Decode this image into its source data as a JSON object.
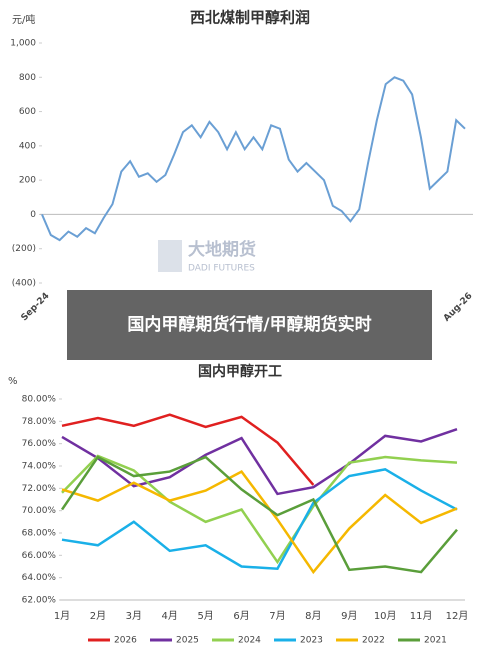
{
  "overlay_caption": "国内甲醇期货行情/甲醇期货实时",
  "chart_data": [
    {
      "type": "line",
      "title": "西北煤制甲醇利润",
      "y_label": "元/吨",
      "watermark": {
        "name": "大地期货",
        "sub": "DADI FUTURES"
      },
      "categories": [
        "Sep-24",
        null,
        null,
        null,
        null,
        null,
        null,
        null,
        null,
        null,
        null,
        null,
        null,
        null,
        null,
        null,
        null,
        null,
        null,
        null,
        null,
        null,
        null,
        null,
        null,
        null,
        null,
        null,
        null,
        null,
        null,
        null,
        null,
        null,
        null,
        null,
        null,
        null,
        null,
        null,
        null,
        null,
        null,
        null,
        null,
        null,
        null,
        null,
        "Aug-26"
      ],
      "series": [
        {
          "name": null,
          "color": "#6a9fd4",
          "values": [
            0,
            -120,
            -150,
            -100,
            -130,
            -80,
            -110,
            -20,
            60,
            250,
            310,
            220,
            240,
            190,
            230,
            350,
            480,
            520,
            450,
            540,
            480,
            380,
            480,
            380,
            450,
            380,
            520,
            500,
            320,
            250,
            300,
            250,
            200,
            50,
            20,
            -40,
            30,
            300,
            550,
            760,
            800,
            780,
            700,
            450,
            150,
            200,
            250,
            550,
            500
          ]
        }
      ],
      "ylim": [
        -400,
        1000
      ],
      "yticks": [
        {
          "value": -400,
          "label": "(400)"
        },
        {
          "value": -200,
          "label": "(200)"
        },
        0,
        200,
        400,
        600,
        800,
        {
          "value": 1000,
          "label": "1,000"
        }
      ],
      "grid": false,
      "legend": false
    },
    {
      "type": "line",
      "title": "国内甲醇开工",
      "y_label": "%",
      "categories": [
        "1月",
        "2月",
        "3月",
        "4月",
        "5月",
        "6月",
        "7月",
        "8月",
        "9月",
        "10月",
        "11月",
        "12月"
      ],
      "series": [
        {
          "name": "2026",
          "color": "#e02020",
          "values": [
            77.6,
            78.3,
            77.6,
            78.6,
            77.5,
            78.4,
            76.1,
            72.3,
            null,
            null,
            null,
            null
          ]
        },
        {
          "name": "2025",
          "color": "#7030a0",
          "values": [
            76.6,
            74.7,
            72.2,
            73.0,
            75.0,
            76.5,
            71.5,
            72.1,
            74.2,
            76.7,
            76.2,
            77.3
          ]
        },
        {
          "name": "2024",
          "color": "#92d050",
          "values": [
            71.6,
            74.9,
            73.6,
            70.8,
            69.0,
            70.1,
            65.4,
            70.4,
            74.3,
            74.8,
            74.5,
            74.3
          ]
        },
        {
          "name": "2023",
          "color": "#1ab0e8",
          "values": [
            67.4,
            66.9,
            69.0,
            66.4,
            66.9,
            65.0,
            64.8,
            70.7,
            73.1,
            73.7,
            71.8,
            70.1
          ]
        },
        {
          "name": "2022",
          "color": "#f5b800",
          "values": [
            71.9,
            70.9,
            72.5,
            70.9,
            71.8,
            73.5,
            69.2,
            64.5,
            68.4,
            71.4,
            68.9,
            70.2
          ]
        },
        {
          "name": "2021",
          "color": "#5a9e3a",
          "values": [
            70.1,
            74.8,
            73.1,
            73.5,
            74.8,
            71.9,
            69.6,
            71.0,
            64.7,
            65.0,
            64.5,
            68.3
          ]
        }
      ],
      "ylim": [
        62,
        80
      ],
      "yticks": [
        {
          "value": 62,
          "label": "62.00%"
        },
        {
          "value": 64,
          "label": "64.00%"
        },
        {
          "value": 66,
          "label": "66.00%"
        },
        {
          "value": 68,
          "label": "68.00%"
        },
        {
          "value": 70,
          "label": "70.00%"
        },
        {
          "value": 72,
          "label": "72.00%"
        },
        {
          "value": 74,
          "label": "74.00%"
        },
        {
          "value": 76,
          "label": "76.00%"
        },
        {
          "value": 78,
          "label": "78.00%"
        },
        {
          "value": 80,
          "label": "80.00%"
        }
      ],
      "grid": false,
      "legend": "bottom"
    }
  ]
}
